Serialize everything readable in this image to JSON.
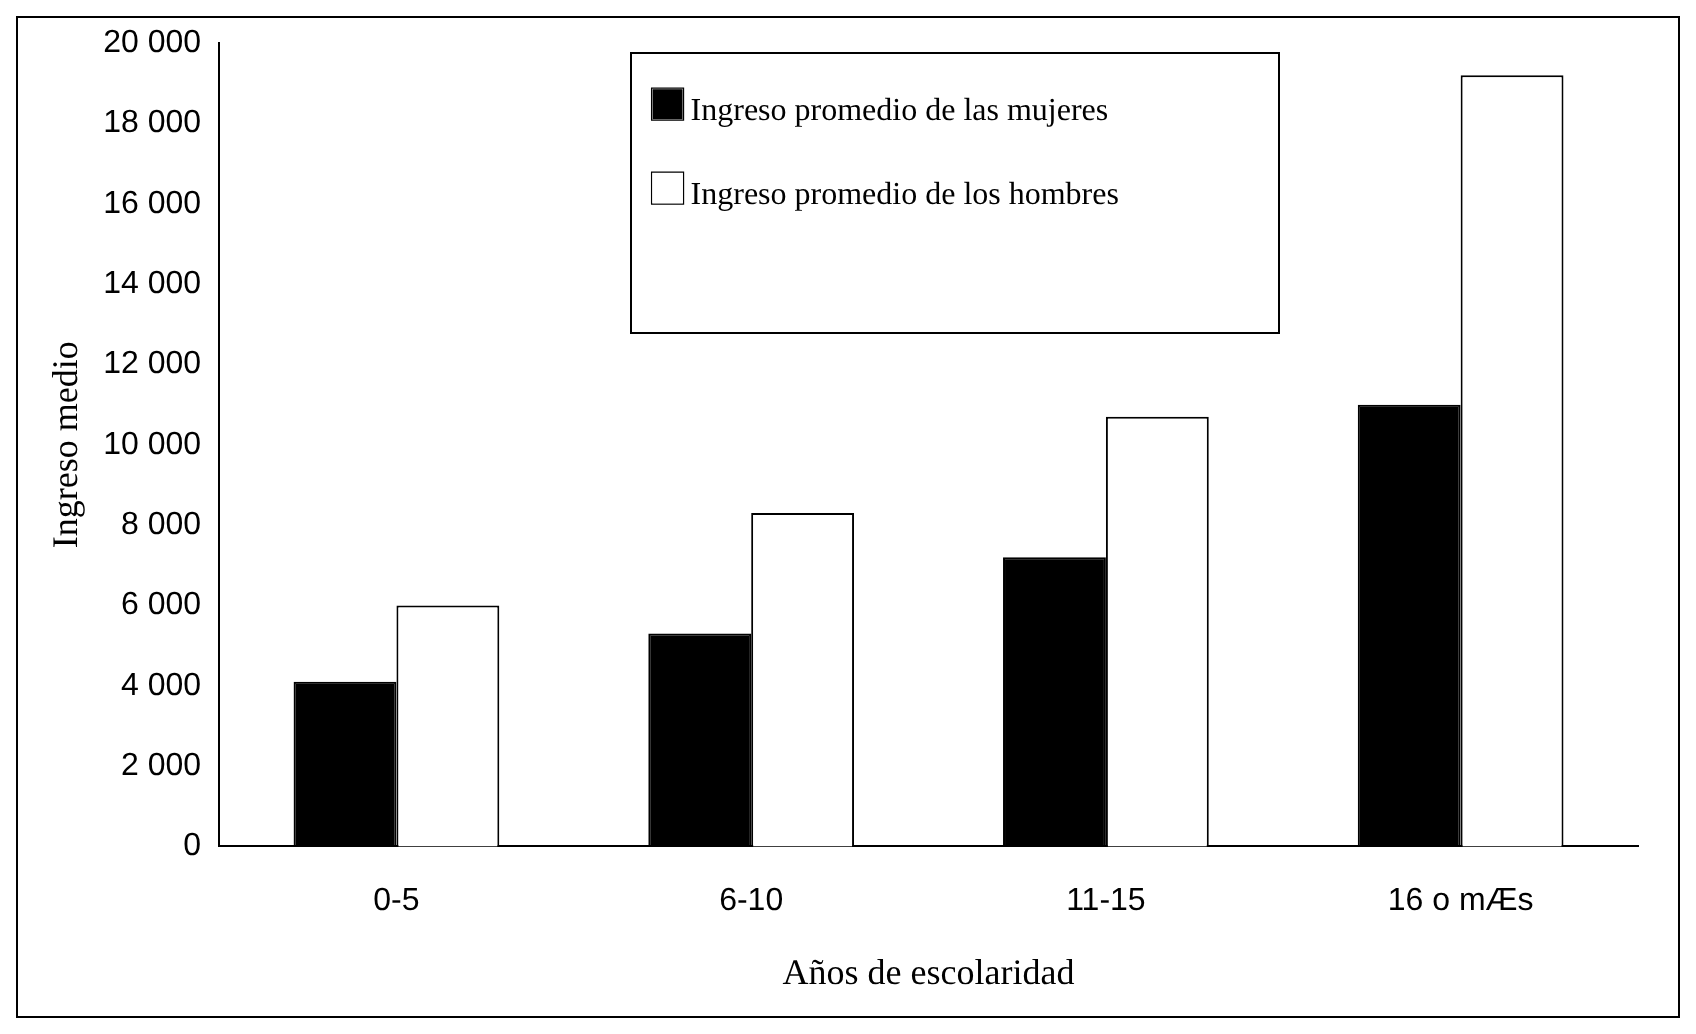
{
  "chart_data": {
    "type": "bar",
    "xlabel": "Años de escolaridad",
    "ylabel": "Ingreso medio",
    "categories": [
      "0-5",
      "6-10",
      "11-15",
      "16 o mÆs"
    ],
    "series": [
      {
        "name": "Ingreso promedio de las mujeres",
        "color": "#000000",
        "values": [
          4100,
          5300,
          7200,
          11000
        ]
      },
      {
        "name": "Ingreso promedio de los hombres",
        "color": "#ffffff",
        "values": [
          6000,
          8300,
          10700,
          19200
        ]
      }
    ],
    "ylim": [
      0,
      20000
    ],
    "yticks": [
      {
        "value": 0,
        "label": "0"
      },
      {
        "value": 2000,
        "label": "2 000"
      },
      {
        "value": 4000,
        "label": "4 000"
      },
      {
        "value": 6000,
        "label": "6 000"
      },
      {
        "value": 8000,
        "label": "8 000"
      },
      {
        "value": 10000,
        "label": "10 000"
      },
      {
        "value": 12000,
        "label": "12 000"
      },
      {
        "value": 14000,
        "label": "14 000"
      },
      {
        "value": 16000,
        "label": "16 000"
      },
      {
        "value": 18000,
        "label": "18 000"
      },
      {
        "value": 20000,
        "label": "20 000"
      }
    ],
    "grid": false,
    "legend": "top right"
  }
}
